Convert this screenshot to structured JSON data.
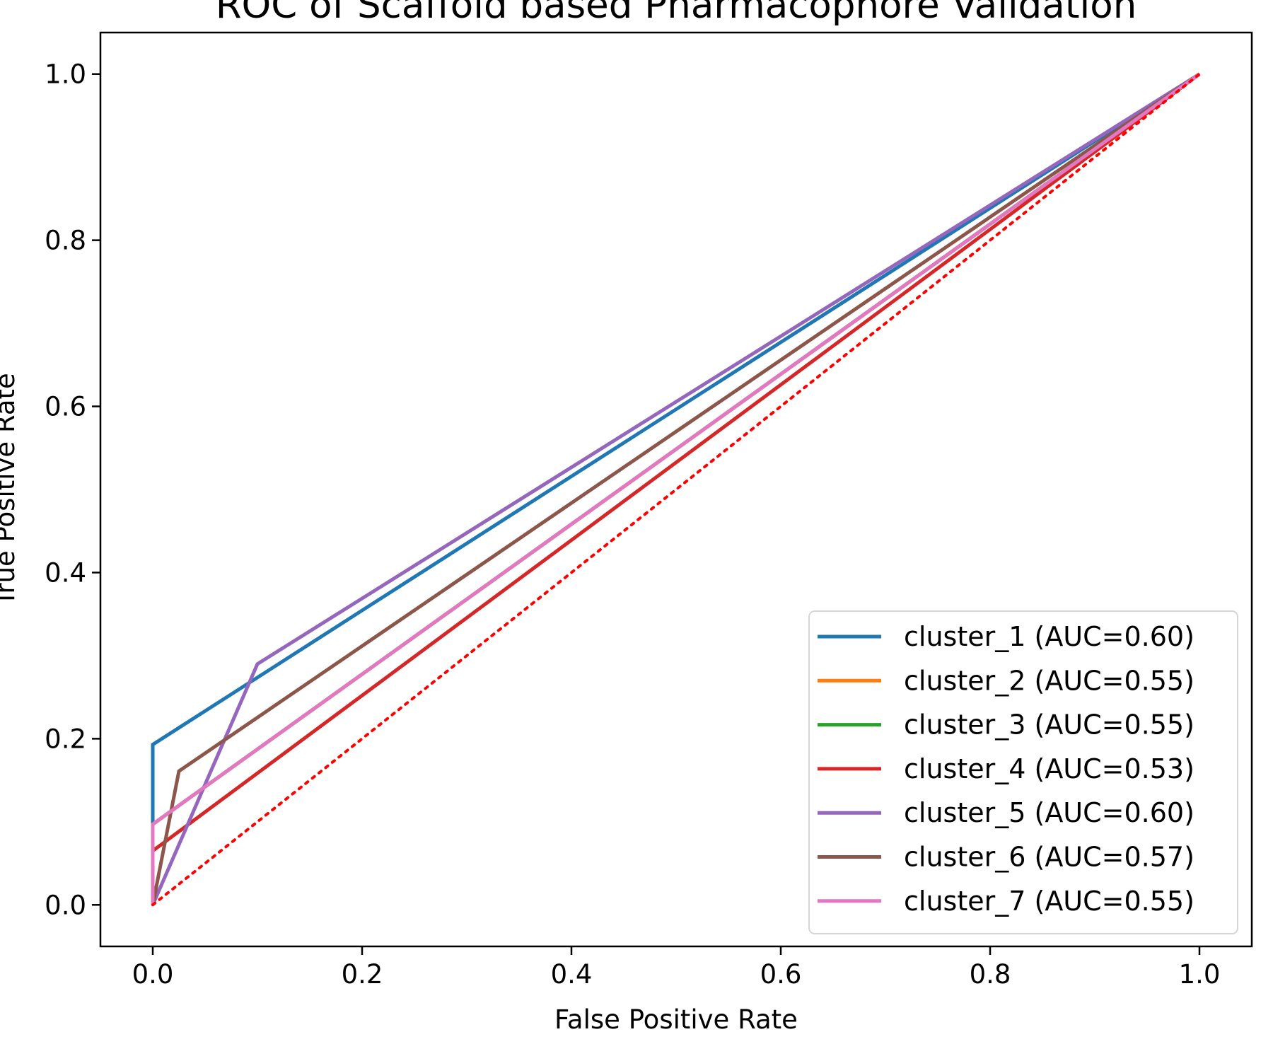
{
  "chart_data": {
    "type": "line",
    "title": "ROC of Scaffold based Pharmacophore Validation",
    "xlabel": "False Positive Rate",
    "ylabel": "True Positive Rate",
    "xlim": [
      -0.05,
      1.05
    ],
    "ylim": [
      -0.05,
      1.05
    ],
    "xticks": [
      "0.0",
      "0.2",
      "0.4",
      "0.6",
      "0.8",
      "1.0"
    ],
    "yticks": [
      "0.0",
      "0.2",
      "0.4",
      "0.6",
      "0.8",
      "1.0"
    ],
    "grid": false,
    "legend_position": "lower-right",
    "series": [
      {
        "name": "cluster_1 (AUC=0.60)",
        "color": "#1f77b4",
        "x": [
          0,
          0,
          1
        ],
        "y": [
          0,
          0.193,
          1
        ]
      },
      {
        "name": "cluster_2 (AUC=0.55)",
        "color": "#ff7f0e",
        "x": [
          0,
          0,
          1
        ],
        "y": [
          0,
          0.097,
          1
        ]
      },
      {
        "name": "cluster_3 (AUC=0.55)",
        "color": "#2ca02c",
        "x": [
          0,
          0,
          1
        ],
        "y": [
          0,
          0.097,
          1
        ]
      },
      {
        "name": "cluster_4 (AUC=0.53)",
        "color": "#d62728",
        "x": [
          0,
          0,
          1
        ],
        "y": [
          0,
          0.065,
          1
        ]
      },
      {
        "name": "cluster_5 (AUC=0.60)",
        "color": "#9467bd",
        "x": [
          0,
          0.1,
          1
        ],
        "y": [
          0,
          0.29,
          1
        ]
      },
      {
        "name": "cluster_6 (AUC=0.57)",
        "color": "#8c564b",
        "x": [
          0,
          0.025,
          1
        ],
        "y": [
          0,
          0.161,
          1
        ]
      },
      {
        "name": "cluster_7 (AUC=0.55)",
        "color": "#e377c2",
        "x": [
          0,
          0,
          1
        ],
        "y": [
          0,
          0.097,
          1
        ]
      }
    ],
    "reference_line": {
      "color": "#ff0000",
      "style": "dotted",
      "x": [
        0,
        1
      ],
      "y": [
        0,
        1
      ]
    }
  }
}
